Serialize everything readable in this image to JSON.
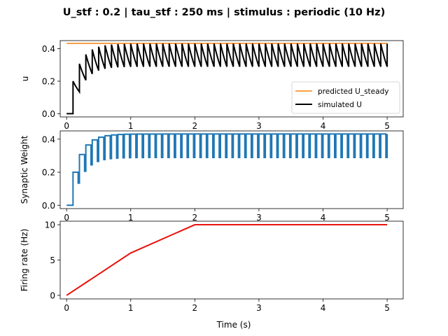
{
  "figure": {
    "title": "U_stf : 0.2 | tau_stf : 250 ms | stimulus : periodic (10 Hz)"
  },
  "chart_data": [
    {
      "type": "line",
      "ylabel": "u",
      "xlabel": "",
      "xlim": [
        -0.1,
        5.25
      ],
      "ylim": [
        -0.02,
        0.45
      ],
      "xticks": [
        0,
        1,
        2,
        3,
        4,
        5
      ],
      "yticks": [
        0.0,
        0.2,
        0.4
      ],
      "ytick_labels": [
        "0.0",
        "0.2",
        "0.4"
      ],
      "grid": false,
      "legend": {
        "placement": "lower-right",
        "entries": [
          {
            "label": "predicted U_steady",
            "color": "#ff7f0e"
          },
          {
            "label": "simulated U",
            "color": "#000000"
          }
        ]
      },
      "series": [
        {
          "name": "predicted U_steady",
          "color": "#ff7f0e",
          "kind": "constant",
          "value": 0.433,
          "x_start": 0.0,
          "x_end": 5.0
        },
        {
          "name": "simulated U",
          "color": "#000000",
          "kind": "stf_u",
          "spike_start": 0.1,
          "spike_period": 0.1,
          "x_end": 5.0,
          "U": 0.2,
          "tau_s": 0.25
        }
      ]
    },
    {
      "type": "line",
      "ylabel": "Synaptic Weight",
      "xlabel": "",
      "xlim": [
        -0.1,
        5.25
      ],
      "ylim": [
        -0.02,
        0.45
      ],
      "xticks": [
        0,
        1,
        2,
        3,
        4,
        5
      ],
      "yticks": [
        0.0,
        0.2,
        0.4
      ],
      "ytick_labels": [
        "0.0",
        "0.2",
        "0.4"
      ],
      "grid": false,
      "series": [
        {
          "name": "",
          "color": "#1f77b4",
          "kind": "stf_weight",
          "spike_start": 0.1,
          "spike_period": 0.1,
          "x_end": 5.0,
          "U": 0.2,
          "tau_s": 0.25,
          "dip_width": 0.02
        }
      ]
    },
    {
      "type": "line",
      "ylabel": "Firing rate (Hz)",
      "xlabel": "Time (s)",
      "xlim": [
        -0.1,
        5.25
      ],
      "ylim": [
        -0.5,
        10.5
      ],
      "xticks": [
        0,
        1,
        2,
        3,
        4,
        5
      ],
      "yticks": [
        0,
        5,
        10
      ],
      "ytick_labels": [
        "0",
        "5",
        "10"
      ],
      "grid": false,
      "series": [
        {
          "name": "",
          "color": "#e8120c",
          "kind": "points",
          "x": [
            0,
            1,
            2,
            3,
            4,
            5
          ],
          "y": [
            0,
            6,
            10,
            10,
            10,
            10
          ]
        }
      ]
    }
  ]
}
